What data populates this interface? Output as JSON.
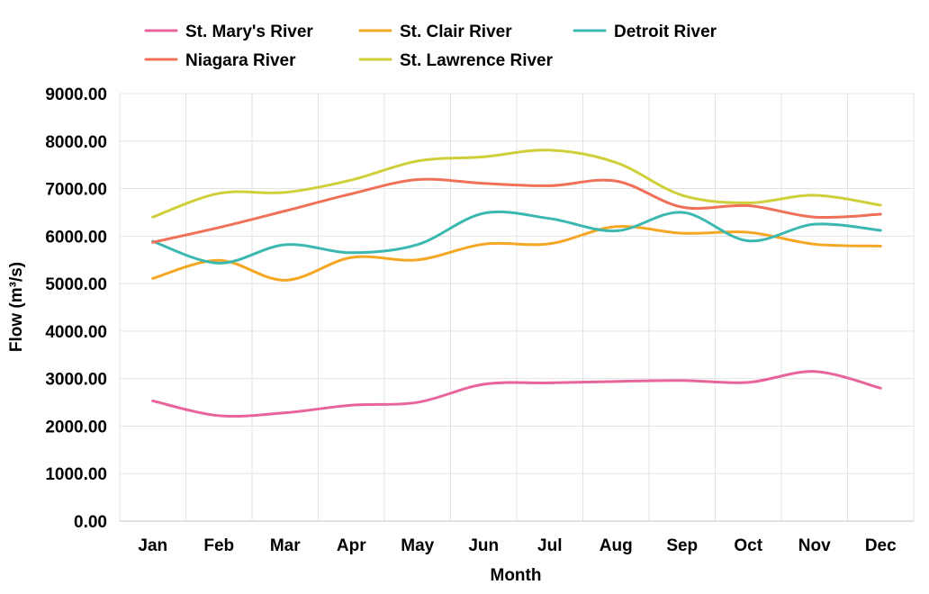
{
  "chart_data": {
    "type": "line",
    "xlabel": "Month",
    "ylabel": "Flow (m³/s)",
    "ylim": [
      0,
      9000
    ],
    "ytick_step": 1000,
    "ytick_format_decimals": 2,
    "grid": true,
    "legend_position": "top",
    "smooth": true,
    "categories": [
      "Jan",
      "Feb",
      "Mar",
      "Apr",
      "May",
      "Jun",
      "Jul",
      "Aug",
      "Sep",
      "Oct",
      "Nov",
      "Dec"
    ],
    "series": [
      {
        "name": "St. Mary's River",
        "color": "#e8649a",
        "values": [
          2530,
          2220,
          2280,
          2440,
          2500,
          2880,
          2910,
          2940,
          2960,
          2920,
          3150,
          2800
        ]
      },
      {
        "name": "St. Clair River",
        "color": "#f5a623",
        "values": [
          5110,
          5490,
          5070,
          5550,
          5500,
          5830,
          5840,
          6200,
          6060,
          6080,
          5830,
          5790
        ]
      },
      {
        "name": "Detroit River",
        "color": "#3bb8b0",
        "values": [
          5890,
          5430,
          5820,
          5650,
          5820,
          6480,
          6370,
          6110,
          6500,
          5900,
          6250,
          6120
        ]
      },
      {
        "name": "Niagara River",
        "color": "#f07058",
        "values": [
          5870,
          6180,
          6530,
          6890,
          7190,
          7110,
          7060,
          7160,
          6610,
          6640,
          6400,
          6460
        ]
      },
      {
        "name": "St. Lawrence River",
        "color": "#cfcf3a",
        "values": [
          6400,
          6900,
          6920,
          7180,
          7580,
          7670,
          7810,
          7550,
          6860,
          6700,
          6860,
          6650
        ]
      }
    ]
  }
}
